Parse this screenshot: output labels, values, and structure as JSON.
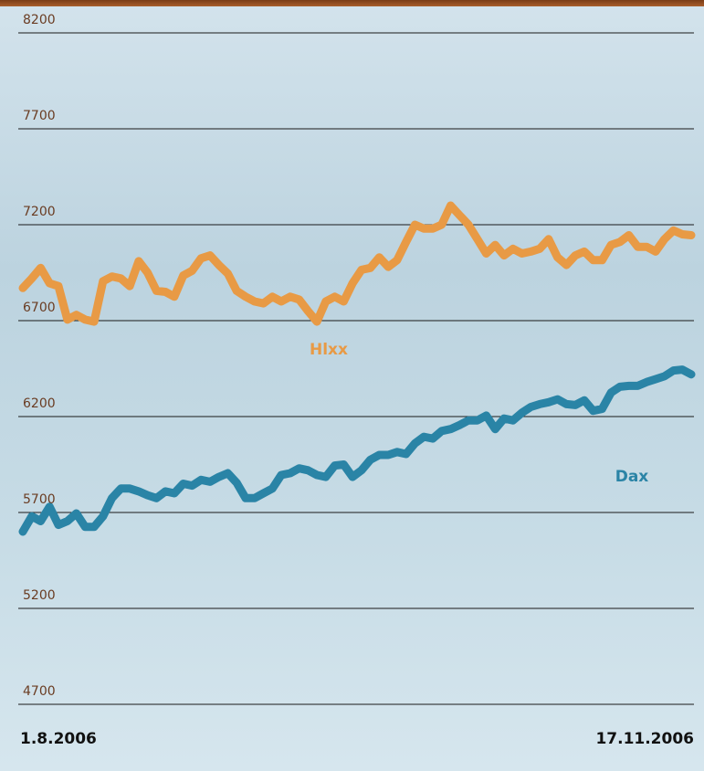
{
  "chart_data": {
    "type": "line",
    "categories": [
      "1.8.2006",
      null,
      null,
      null,
      null,
      null,
      null,
      null,
      null,
      null,
      null,
      null,
      null,
      null,
      null,
      null,
      null,
      null,
      null,
      null,
      null,
      null,
      null,
      null,
      null,
      null,
      null,
      null,
      null,
      null,
      null,
      null,
      null,
      null,
      null,
      null,
      null,
      null,
      null,
      null,
      null,
      null,
      null,
      null,
      null,
      null,
      null,
      null,
      null,
      null,
      null,
      null,
      null,
      null,
      null,
      null,
      null,
      null,
      null,
      null,
      null,
      null,
      null,
      null,
      null,
      null,
      null,
      null,
      null,
      null,
      null,
      null,
      null,
      null,
      null,
      "17.11.2006"
    ],
    "series": [
      {
        "name": "Hlxx",
        "color": "#e89a45",
        "values": [
          6870,
          6920,
          6975,
          6895,
          6880,
          6705,
          6730,
          6705,
          6695,
          6905,
          6930,
          6920,
          6880,
          7010,
          6950,
          6855,
          6850,
          6825,
          6935,
          6960,
          7025,
          7040,
          6990,
          6945,
          6855,
          6825,
          6800,
          6790,
          6825,
          6800,
          6825,
          6810,
          6750,
          6695,
          6800,
          6825,
          6800,
          6895,
          6965,
          6975,
          7030,
          6980,
          7015,
          7110,
          7200,
          7180,
          7180,
          7200,
          7300,
          7250,
          7200,
          7125,
          7050,
          7095,
          7040,
          7075,
          7050,
          7060,
          7075,
          7125,
          7030,
          6990,
          7040,
          7060,
          7015,
          7015,
          7095,
          7110,
          7145,
          7085,
          7085,
          7060,
          7125,
          7170,
          7150,
          7145
        ]
      },
      {
        "name": "Dax",
        "color": "#2a84a6",
        "values": [
          5600,
          5680,
          5655,
          5730,
          5635,
          5655,
          5695,
          5625,
          5625,
          5680,
          5775,
          5825,
          5825,
          5810,
          5790,
          5775,
          5810,
          5800,
          5850,
          5840,
          5870,
          5860,
          5885,
          5905,
          5855,
          5775,
          5775,
          5800,
          5825,
          5895,
          5905,
          5930,
          5920,
          5895,
          5885,
          5945,
          5950,
          5885,
          5920,
          5975,
          6000,
          6000,
          6015,
          6005,
          6060,
          6095,
          6085,
          6125,
          6135,
          6155,
          6180,
          6180,
          6205,
          6135,
          6190,
          6180,
          6220,
          6250,
          6265,
          6275,
          6290,
          6265,
          6260,
          6285,
          6230,
          6240,
          6325,
          6355,
          6360,
          6360,
          6380,
          6395,
          6410,
          6440,
          6445,
          6420
        ]
      }
    ],
    "ylim": [
      4700,
      8200
    ],
    "yticks": [
      4700,
      5200,
      5700,
      6200,
      6700,
      7200,
      7700,
      8200
    ],
    "grid": true
  }
}
